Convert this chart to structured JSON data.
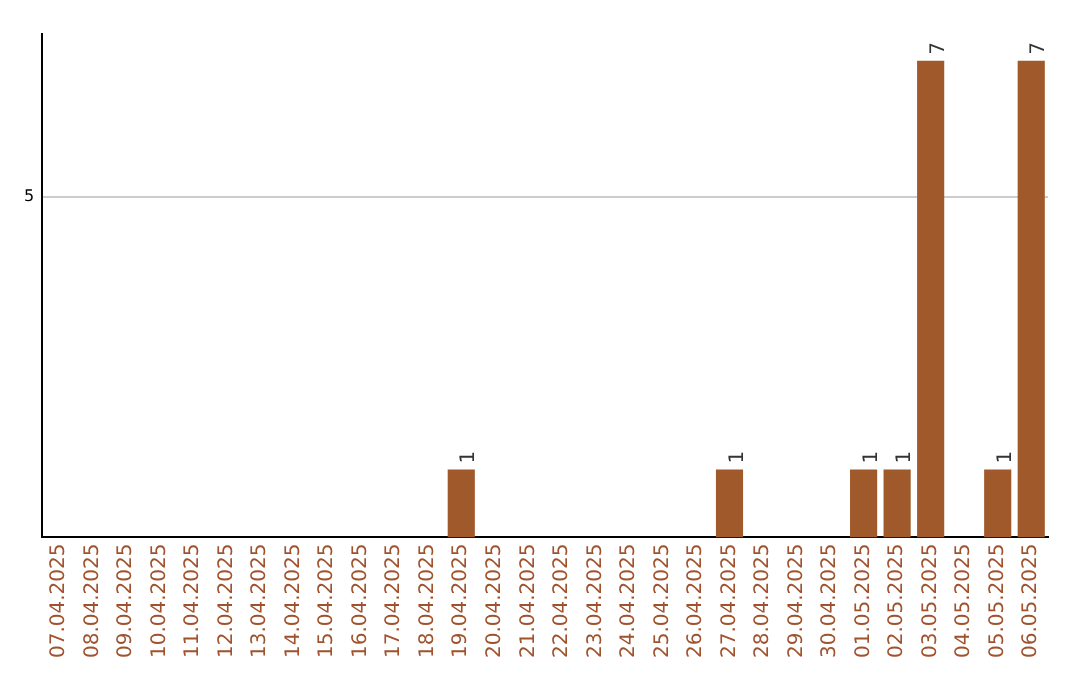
{
  "chart_data": {
    "type": "bar",
    "categories": [
      "07.04.2025",
      "08.04.2025",
      "09.04.2025",
      "10.04.2025",
      "11.04.2025",
      "12.04.2025",
      "13.04.2025",
      "14.04.2025",
      "15.04.2025",
      "16.04.2025",
      "17.04.2025",
      "18.04.2025",
      "19.04.2025",
      "20.04.2025",
      "21.04.2025",
      "22.04.2025",
      "23.04.2025",
      "24.04.2025",
      "25.04.2025",
      "26.04.2025",
      "27.04.2025",
      "28.04.2025",
      "29.04.2025",
      "30.04.2025",
      "01.05.2025",
      "02.05.2025",
      "03.05.2025",
      "04.05.2025",
      "05.05.2025",
      "06.05.2025"
    ],
    "values": [
      null,
      null,
      null,
      null,
      null,
      null,
      null,
      null,
      null,
      null,
      null,
      null,
      1,
      null,
      null,
      null,
      null,
      null,
      null,
      null,
      1,
      null,
      null,
      null,
      1,
      1,
      7,
      null,
      1,
      7
    ],
    "value_labels": [
      null,
      null,
      null,
      null,
      null,
      null,
      null,
      null,
      null,
      null,
      null,
      null,
      "1",
      null,
      null,
      null,
      null,
      null,
      null,
      null,
      "1",
      null,
      null,
      null,
      "1",
      "1",
      "7",
      null,
      "1",
      "7"
    ],
    "color": "#a0592a",
    "ylim": [
      0,
      7.4
    ],
    "yticks": [
      5
    ],
    "grid": "y",
    "legend": false
  }
}
